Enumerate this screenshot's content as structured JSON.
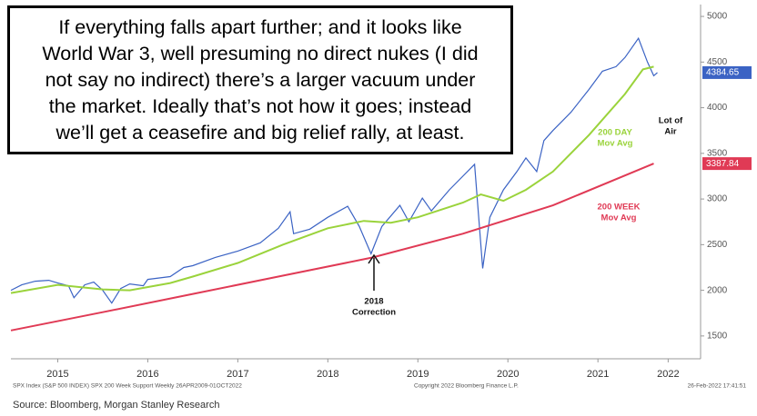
{
  "chart_data": {
    "type": "line",
    "commentary": [
      "If everything falls apart further; and it looks like",
      "World War 3, well presuming no direct nukes (I did",
      "not say no indirect) there’s a larger vacuum under",
      "the market. Ideally that’s not how it goes; instead",
      "we’ll get a ceasefire and big relief rally, at least."
    ],
    "annotations": {
      "lot_of_air": [
        "Lot of",
        "Air"
      ],
      "dma": [
        "200 DAY",
        "Mov Avg"
      ],
      "wma": [
        "200 WEEK",
        "Mov Avg"
      ],
      "correction": [
        "2018",
        "Correction"
      ]
    },
    "footer_left": "SPX Index (S&P 500 INDEX) SPX 200 Week Support Weekly 26APR2009-01OCT2022",
    "footer_mid": "Copyright 2022 Bloomberg Finance L.P.",
    "footer_right": "26-Feb-2022 17:41:51",
    "source": "Source: Bloomberg, Morgan Stanley Research",
    "xlim": [
      2014.98,
      2022.62
    ],
    "xticks": [
      {
        "value": 2015.5,
        "label": "2015"
      },
      {
        "value": 2016.5,
        "label": "2016"
      },
      {
        "value": 2017.5,
        "label": "2017"
      },
      {
        "value": 2018.5,
        "label": "2018"
      },
      {
        "value": 2019.5,
        "label": "2019"
      },
      {
        "value": 2020.5,
        "label": "2020"
      },
      {
        "value": 2021.5,
        "label": "2021"
      },
      {
        "value": 2022.28,
        "label": "2022"
      }
    ],
    "ylim": [
      1250,
      5130
    ],
    "yticks": [
      1500,
      2000,
      2500,
      3000,
      3500,
      4000,
      4500,
      5000
    ],
    "grid": false,
    "series": [
      {
        "name": "SPX",
        "color": "#3b63c4",
        "x": [
          2014.98,
          2015.1,
          2015.25,
          2015.4,
          2015.5,
          2015.62,
          2015.68,
          2015.8,
          2015.9,
          2016.0,
          2016.1,
          2016.2,
          2016.3,
          2016.45,
          2016.5,
          2016.75,
          2016.9,
          2017.0,
          2017.25,
          2017.5,
          2017.75,
          2017.95,
          2018.08,
          2018.12,
          2018.3,
          2018.5,
          2018.72,
          2018.85,
          2018.98,
          2019.1,
          2019.3,
          2019.4,
          2019.55,
          2019.65,
          2019.85,
          2020.0,
          2020.13,
          2020.22,
          2020.3,
          2020.45,
          2020.6,
          2020.7,
          2020.82,
          2020.9,
          2021.0,
          2021.2,
          2021.4,
          2021.55,
          2021.7,
          2021.8,
          2021.95,
          2022.05,
          2022.12,
          2022.16
        ],
        "values": [
          2000,
          2060,
          2100,
          2110,
          2080,
          2050,
          1920,
          2060,
          2090,
          2000,
          1860,
          2020,
          2070,
          2050,
          2120,
          2150,
          2250,
          2270,
          2360,
          2430,
          2520,
          2680,
          2860,
          2620,
          2670,
          2800,
          2920,
          2700,
          2400,
          2700,
          2930,
          2750,
          3010,
          2870,
          3100,
          3250,
          3380,
          2240,
          2800,
          3100,
          3300,
          3450,
          3300,
          3640,
          3750,
          3950,
          4200,
          4400,
          4450,
          4550,
          4760,
          4500,
          4350,
          4384.65
        ]
      },
      {
        "name": "200 DAY Mov Avg",
        "color": "#9ad33b",
        "x": [
          2014.98,
          2015.5,
          2016.0,
          2016.3,
          2016.75,
          2017.0,
          2017.5,
          2018.0,
          2018.5,
          2018.9,
          2019.2,
          2019.5,
          2020.0,
          2020.2,
          2020.45,
          2020.7,
          2021.0,
          2021.4,
          2021.8,
          2022.0,
          2022.12
        ],
        "values": [
          1970,
          2060,
          2010,
          2000,
          2080,
          2150,
          2300,
          2500,
          2680,
          2760,
          2740,
          2800,
          2960,
          3050,
          2980,
          3100,
          3300,
          3700,
          4150,
          4420,
          4450
        ]
      },
      {
        "name": "200 WEEK Mov Avg",
        "color": "#e03a55",
        "x": [
          2014.98,
          2016.0,
          2017.0,
          2018.0,
          2019.0,
          2020.0,
          2021.0,
          2022.12
        ],
        "values": [
          1560,
          1760,
          1960,
          2160,
          2360,
          2620,
          2930,
          3387.84
        ]
      }
    ]
  }
}
